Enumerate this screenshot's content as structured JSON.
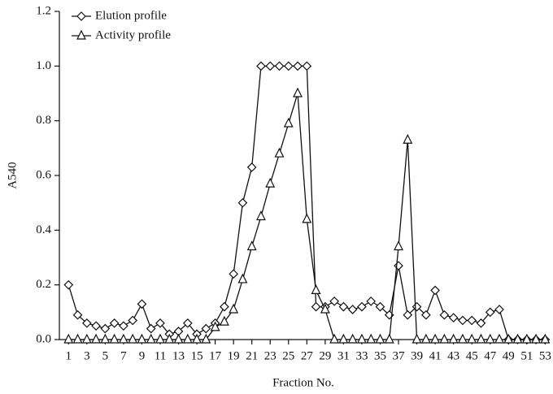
{
  "chart_data": {
    "type": "line",
    "x_label": "Fraction No.",
    "y_label": "A540",
    "x": [
      1,
      2,
      3,
      4,
      5,
      6,
      7,
      8,
      9,
      10,
      11,
      12,
      13,
      14,
      15,
      16,
      17,
      18,
      19,
      20,
      21,
      22,
      23,
      24,
      25,
      26,
      27,
      28,
      29,
      30,
      31,
      32,
      33,
      34,
      35,
      36,
      37,
      38,
      39,
      40,
      41,
      42,
      43,
      44,
      45,
      46,
      47,
      48,
      49,
      50,
      51,
      52,
      53
    ],
    "series": [
      {
        "name": "Elution profile",
        "color": "#111111",
        "marker": "diamond",
        "values": [
          0.2,
          0.09,
          0.06,
          0.05,
          0.04,
          0.06,
          0.05,
          0.07,
          0.13,
          0.04,
          0.06,
          0.02,
          0.03,
          0.06,
          0.02,
          0.04,
          0.06,
          0.12,
          0.24,
          0.5,
          0.63,
          1.0,
          1.0,
          1.0,
          1.0,
          1.0,
          1.0,
          0.12,
          0.12,
          0.14,
          0.12,
          0.11,
          0.12,
          0.14,
          0.12,
          0.09,
          0.27,
          0.09,
          0.12,
          0.09,
          0.18,
          0.09,
          0.08,
          0.07,
          0.07,
          0.06,
          0.1,
          0.11,
          0,
          0,
          0,
          0,
          0
        ]
      },
      {
        "name": "Activity profile",
        "color": "#111111",
        "marker": "triangle",
        "values": [
          0,
          0,
          0,
          0,
          0,
          0,
          0,
          0,
          0,
          0,
          0,
          0,
          0,
          0,
          0,
          0,
          0.045,
          0.065,
          0.11,
          0.22,
          0.34,
          0.45,
          0.57,
          0.68,
          0.79,
          0.9,
          0.44,
          0.18,
          0.11,
          0,
          0,
          0,
          0,
          0,
          0,
          0,
          0.34,
          0.73,
          0,
          0,
          0,
          0,
          0,
          0,
          0,
          0,
          0,
          0,
          0,
          0,
          0,
          0,
          0
        ]
      }
    ],
    "xlim": [
      0,
      53.5
    ],
    "xticks": [
      1,
      3,
      5,
      7,
      9,
      11,
      13,
      15,
      17,
      19,
      21,
      23,
      25,
      27,
      29,
      31,
      33,
      35,
      37,
      39,
      41,
      43,
      45,
      47,
      49,
      51,
      53
    ],
    "ylim": [
      0,
      1.2
    ],
    "yticks": [
      {
        "value": 0,
        "label": "0.0"
      },
      0.2,
      0.4,
      0.6,
      0.8,
      {
        "value": 1,
        "label": "1.0"
      },
      1.2
    ],
    "legend": "top-left"
  }
}
